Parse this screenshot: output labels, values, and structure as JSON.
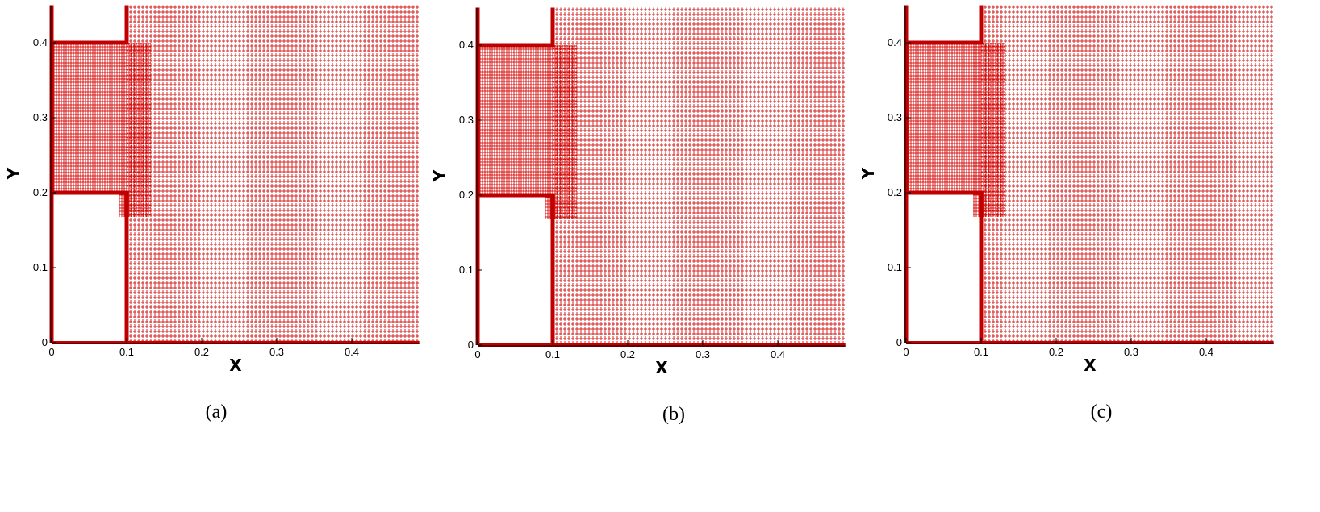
{
  "panels": [
    {
      "caption": "(a)",
      "xlabel": "X",
      "ylabel": "Y",
      "xlim": [
        0,
        0.49
      ],
      "ylim": [
        0,
        0.45
      ],
      "xticks": [
        0,
        0.1,
        0.2,
        0.3,
        0.4
      ],
      "yticks": [
        0,
        0.1,
        0.2,
        0.3,
        0.4
      ]
    },
    {
      "caption": "(b)",
      "xlabel": "X",
      "ylabel": "Y",
      "xlim": [
        0,
        0.49
      ],
      "ylim": [
        0,
        0.45
      ],
      "xticks": [
        0,
        0.1,
        0.2,
        0.3,
        0.4
      ],
      "yticks": [
        0,
        0.1,
        0.2,
        0.3,
        0.4
      ]
    },
    {
      "caption": "(c)",
      "xlabel": "X",
      "ylabel": "Y",
      "xlim": [
        0,
        0.49
      ],
      "ylim": [
        0,
        0.45
      ],
      "xticks": [
        0,
        0.1,
        0.2,
        0.3,
        0.4
      ],
      "yticks": [
        0,
        0.1,
        0.2,
        0.3,
        0.4
      ]
    }
  ]
}
